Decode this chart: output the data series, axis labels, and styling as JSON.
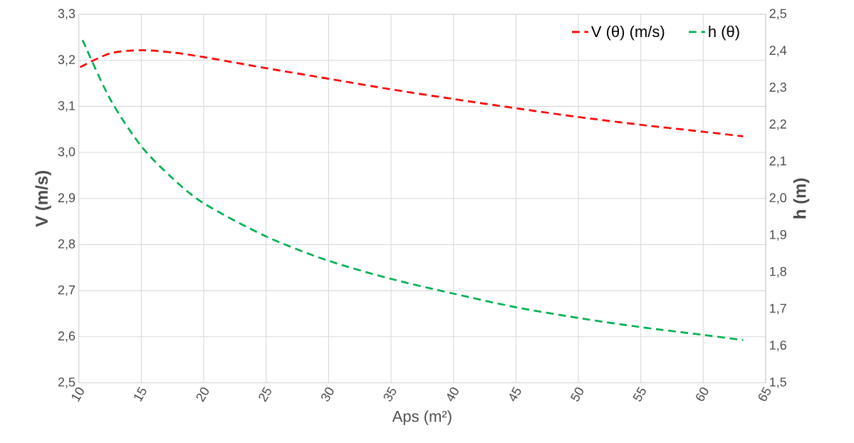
{
  "chart_data": {
    "type": "line",
    "xlabel": "Aps (m²)",
    "ylabel": "V (m/s)",
    "y2label": "h (m)",
    "xlim": [
      10,
      65
    ],
    "xticks": [
      10,
      15,
      20,
      25,
      30,
      35,
      40,
      45,
      50,
      55,
      60,
      65
    ],
    "ylim": [
      2.5,
      3.3
    ],
    "yticks": [
      {
        "value": 2.5,
        "label": "2,5"
      },
      {
        "value": 2.6,
        "label": "2,6"
      },
      {
        "value": 2.7,
        "label": "2,7"
      },
      {
        "value": 2.8,
        "label": "2,8"
      },
      {
        "value": 2.9,
        "label": "2,9"
      },
      {
        "value": 3.0,
        "label": "3,0"
      },
      {
        "value": 3.1,
        "label": "3,1"
      },
      {
        "value": 3.2,
        "label": "3,2"
      },
      {
        "value": 3.3,
        "label": "3,3"
      }
    ],
    "y2lim": [
      1.5,
      2.5
    ],
    "y2ticks": [
      {
        "value": 1.5,
        "label": "1,5"
      },
      {
        "value": 1.6,
        "label": "1,6"
      },
      {
        "value": 1.7,
        "label": "1,7"
      },
      {
        "value": 1.8,
        "label": "1,8"
      },
      {
        "value": 1.9,
        "label": "1,9"
      },
      {
        "value": 2.0,
        "label": "2,0"
      },
      {
        "value": 2.1,
        "label": "2,1"
      },
      {
        "value": 2.2,
        "label": "2,2"
      },
      {
        "value": 2.3,
        "label": "2,3"
      },
      {
        "value": 2.4,
        "label": "2,4"
      },
      {
        "value": 2.5,
        "label": "2,5"
      }
    ],
    "series": [
      {
        "name": "V (θ) (m/s)",
        "color": "#ff0000",
        "x": [
          10.1,
          12.5,
          15,
          17.5,
          20,
          25,
          30,
          35,
          40,
          45,
          50,
          55,
          60,
          63.2
        ],
        "values": [
          3.185,
          3.215,
          3.222,
          3.217,
          3.207,
          3.183,
          3.16,
          3.137,
          3.116,
          3.096,
          3.077,
          3.06,
          3.045,
          3.035
        ]
      },
      {
        "name": "h (θ)",
        "color": "#00b050",
        "axis": "y2",
        "x": [
          10.3,
          12.5,
          15,
          17.5,
          20,
          25,
          30,
          35,
          40,
          45,
          50,
          55,
          60,
          63.2
        ],
        "values": [
          2.43,
          2.27,
          2.142,
          2.055,
          1.987,
          1.897,
          1.831,
          1.782,
          1.742,
          1.705,
          1.676,
          1.651,
          1.63,
          1.616
        ]
      }
    ],
    "grid": true,
    "legend": "top right",
    "line_style": "dashed",
    "marker": "none"
  }
}
